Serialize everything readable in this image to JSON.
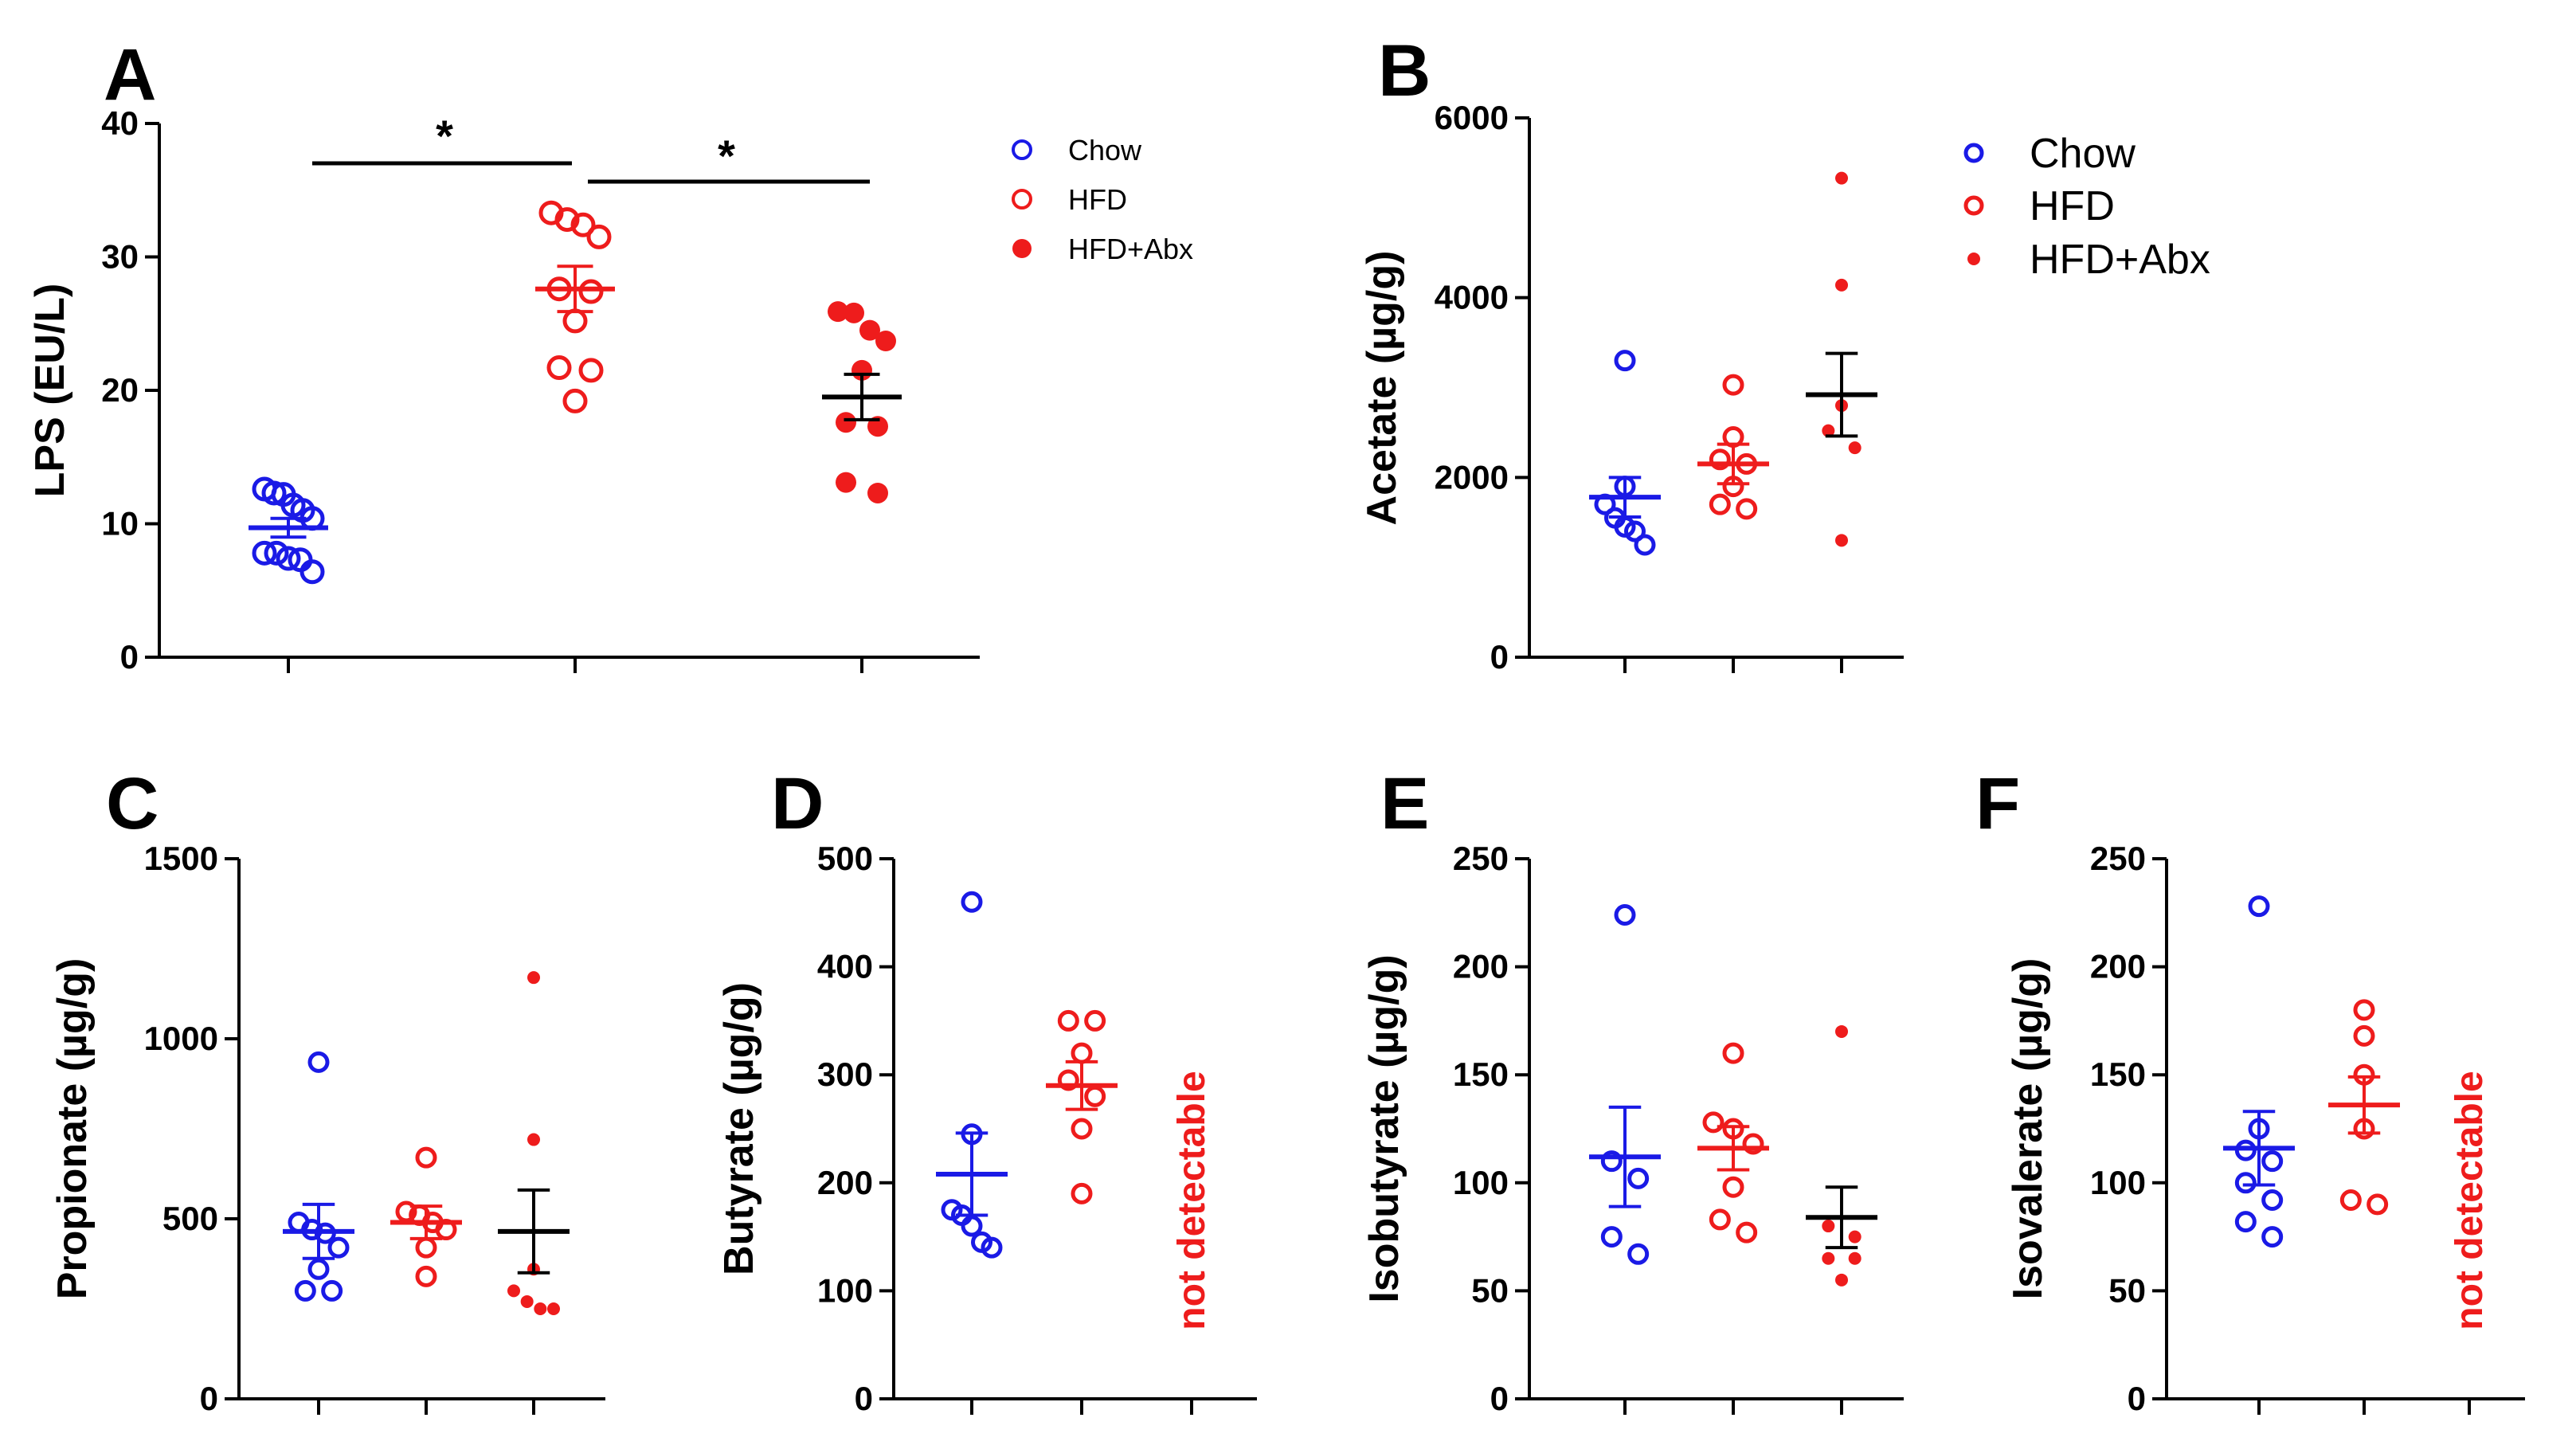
{
  "colors": {
    "chow": "#1a1ae6",
    "hfd": "#ee1c1c",
    "axis": "#000000"
  },
  "legend": [
    "Chow",
    "HFD",
    "HFD+Abx"
  ],
  "chart_data": [
    {
      "id": "A",
      "letter": "A",
      "type": "scatter",
      "ylabel": "LPS (EU/L)",
      "ylim": [
        0,
        40
      ],
      "yticks": [
        0,
        10,
        20,
        30,
        40
      ],
      "ytick_labels": [
        "0",
        "10",
        "20",
        "30",
        "40"
      ],
      "groups": [
        {
          "name": "Chow",
          "style": "open-blue",
          "mean": 9.7,
          "sem": 0.7,
          "values": [
            12.6,
            11.4,
            12.2,
            12.3,
            10.4,
            11.0,
            7.4,
            7.8,
            7.3,
            7.8,
            6.4
          ]
        },
        {
          "name": "HFD",
          "style": "open-red",
          "mean": 27.6,
          "sem": 1.7,
          "values": [
            32.4,
            33.3,
            32.8,
            31.5,
            27.6,
            27.4,
            25.2,
            21.5,
            21.7,
            19.2
          ]
        },
        {
          "name": "HFD+Abx",
          "style": "filled-red",
          "mean": 19.5,
          "sem": 1.7,
          "values": [
            24.5,
            25.8,
            25.9,
            23.7,
            21.5,
            17.6,
            17.3,
            13.1,
            12.3
          ]
        }
      ],
      "significance": [
        {
          "from": 0,
          "to": 1,
          "label": "*"
        },
        {
          "from": 1,
          "to": 2,
          "label": "*"
        }
      ]
    },
    {
      "id": "B",
      "letter": "B",
      "type": "scatter",
      "ylabel": "Acetate (µg/g)",
      "ylim": [
        0,
        6000
      ],
      "yticks": [
        0,
        2000,
        4000,
        6000
      ],
      "ytick_labels": [
        "0",
        "2000",
        "4000",
        "6000"
      ],
      "groups": [
        {
          "name": "Chow",
          "style": "open-blue",
          "mean": 1780,
          "sem": 220,
          "values": [
            3300,
            1900,
            1700,
            1550,
            1450,
            1400,
            1250
          ]
        },
        {
          "name": "HFD",
          "style": "open-red",
          "mean": 2150,
          "sem": 220,
          "values": [
            3030,
            2450,
            2200,
            2150,
            1900,
            1700,
            1650
          ]
        },
        {
          "name": "HFD+Abx",
          "style": "dot-red",
          "mean": 2920,
          "sem": 460,
          "values": [
            5330,
            4140,
            2800,
            2520,
            2330,
            1300
          ]
        }
      ]
    },
    {
      "id": "C",
      "letter": "C",
      "type": "scatter",
      "ylabel": "Propionate (µg/g)",
      "ylim": [
        0,
        1500
      ],
      "yticks": [
        0,
        500,
        1000,
        1500
      ],
      "ytick_labels": [
        "0",
        "500",
        "1000",
        "1500"
      ],
      "groups": [
        {
          "name": "Chow",
          "style": "open-blue",
          "mean": 465,
          "sem": 75,
          "values": [
            935,
            490,
            470,
            460,
            420,
            360,
            300,
            300
          ]
        },
        {
          "name": "HFD",
          "style": "open-red",
          "mean": 490,
          "sem": 45,
          "values": [
            670,
            520,
            510,
            490,
            470,
            420,
            340
          ]
        },
        {
          "name": "HFD+Abx",
          "style": "dot-red",
          "mean": 465,
          "sem": 115,
          "values": [
            1170,
            720,
            360,
            300,
            270,
            250,
            250
          ]
        }
      ]
    },
    {
      "id": "D",
      "letter": "D",
      "type": "scatter",
      "ylabel": "Butyrate (µg/g)",
      "ylim": [
        0,
        500
      ],
      "yticks": [
        0,
        100,
        200,
        300,
        400,
        500
      ],
      "ytick_labels": [
        "0",
        "100",
        "200",
        "300",
        "400",
        "500"
      ],
      "groups": [
        {
          "name": "Chow",
          "style": "open-blue",
          "mean": 208,
          "sem": 38,
          "values": [
            460,
            245,
            175,
            170,
            160,
            145,
            140
          ]
        },
        {
          "name": "HFD",
          "style": "open-red",
          "mean": 290,
          "sem": 22,
          "values": [
            350,
            350,
            320,
            295,
            280,
            250,
            190
          ]
        }
      ],
      "not_detectable": "not detectable"
    },
    {
      "id": "E",
      "letter": "E",
      "type": "scatter",
      "ylabel": "Isobutyrate (µg/g)",
      "ylim": [
        0,
        250
      ],
      "yticks": [
        0,
        50,
        100,
        150,
        200,
        250
      ],
      "ytick_labels": [
        "0",
        "50",
        "100",
        "150",
        "200",
        "250"
      ],
      "groups": [
        {
          "name": "Chow",
          "style": "open-blue",
          "mean": 112,
          "sem": 23,
          "values": [
            224,
            110,
            102,
            75,
            67
          ]
        },
        {
          "name": "HFD",
          "style": "open-red",
          "mean": 116,
          "sem": 10,
          "values": [
            160,
            128,
            125,
            118,
            98,
            83,
            77
          ]
        },
        {
          "name": "HFD+Abx",
          "style": "dot-red",
          "mean": 84,
          "sem": 14,
          "values": [
            170,
            80,
            75,
            65,
            65,
            55
          ]
        }
      ]
    },
    {
      "id": "F",
      "letter": "F",
      "type": "scatter",
      "ylabel": "Isovalerate (µg/g)",
      "ylim": [
        0,
        250
      ],
      "yticks": [
        0,
        50,
        100,
        150,
        200,
        250
      ],
      "ytick_labels": [
        "0",
        "50",
        "100",
        "150",
        "200",
        "250"
      ],
      "groups": [
        {
          "name": "Chow",
          "style": "open-blue",
          "mean": 116,
          "sem": 17,
          "values": [
            228,
            125,
            115,
            110,
            100,
            92,
            82,
            75
          ]
        },
        {
          "name": "HFD",
          "style": "open-red",
          "mean": 136,
          "sem": 13,
          "values": [
            180,
            168,
            150,
            125,
            92,
            90
          ]
        }
      ],
      "not_detectable": "not detectable"
    }
  ]
}
